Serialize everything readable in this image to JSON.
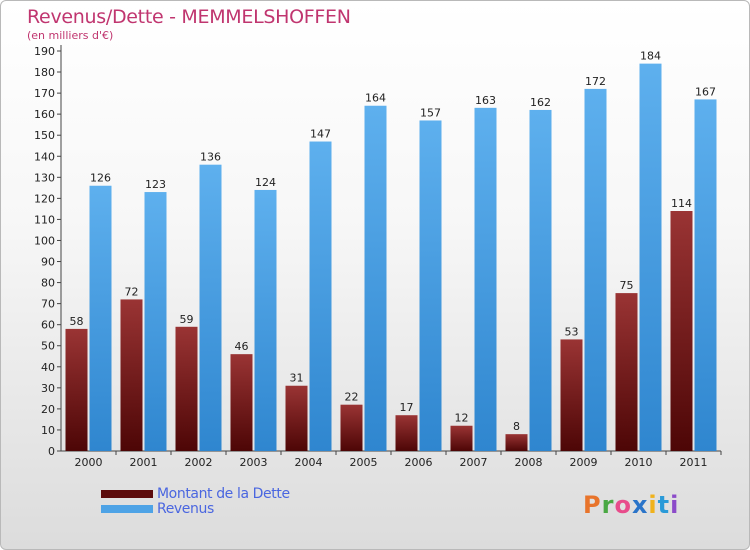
{
  "title": "Revenus/Dette - MEMMELSHOFFEN",
  "subtitle": "(en milliers d'€)",
  "colors": {
    "dette": "#7a1a1a",
    "revenus": "#4ea3e6",
    "accent": "#c0356f"
  },
  "legend": [
    {
      "label": "Montant de la Dette",
      "color": "#5c0b0b"
    },
    {
      "label": "Revenus",
      "color": "#4ea3e6"
    }
  ],
  "logo": {
    "letters": [
      "P",
      "r",
      "o",
      "x",
      "i",
      "t",
      "i"
    ],
    "colors": [
      "#e8742b",
      "#4aa843",
      "#e84c8b",
      "#2a74c9",
      "#f0b21c",
      "#2a9ad8",
      "#8c4bc9"
    ]
  },
  "chart_data": {
    "type": "bar",
    "categories": [
      "2000",
      "2001",
      "2002",
      "2003",
      "2004",
      "2005",
      "2006",
      "2007",
      "2008",
      "2009",
      "2010",
      "2011"
    ],
    "series": [
      {
        "name": "Montant de la Dette",
        "values": [
          58,
          72,
          59,
          46,
          31,
          22,
          17,
          12,
          8,
          53,
          75,
          114
        ]
      },
      {
        "name": "Revenus",
        "values": [
          126,
          123,
          136,
          124,
          147,
          164,
          157,
          163,
          162,
          172,
          184,
          167
        ]
      }
    ],
    "yticks": [
      0,
      10,
      20,
      30,
      40,
      50,
      60,
      70,
      80,
      90,
      100,
      110,
      120,
      130,
      140,
      150,
      160,
      170,
      180,
      190
    ],
    "ylim": [
      0,
      190
    ],
    "grid": false,
    "legend_position": "bottom-left"
  }
}
